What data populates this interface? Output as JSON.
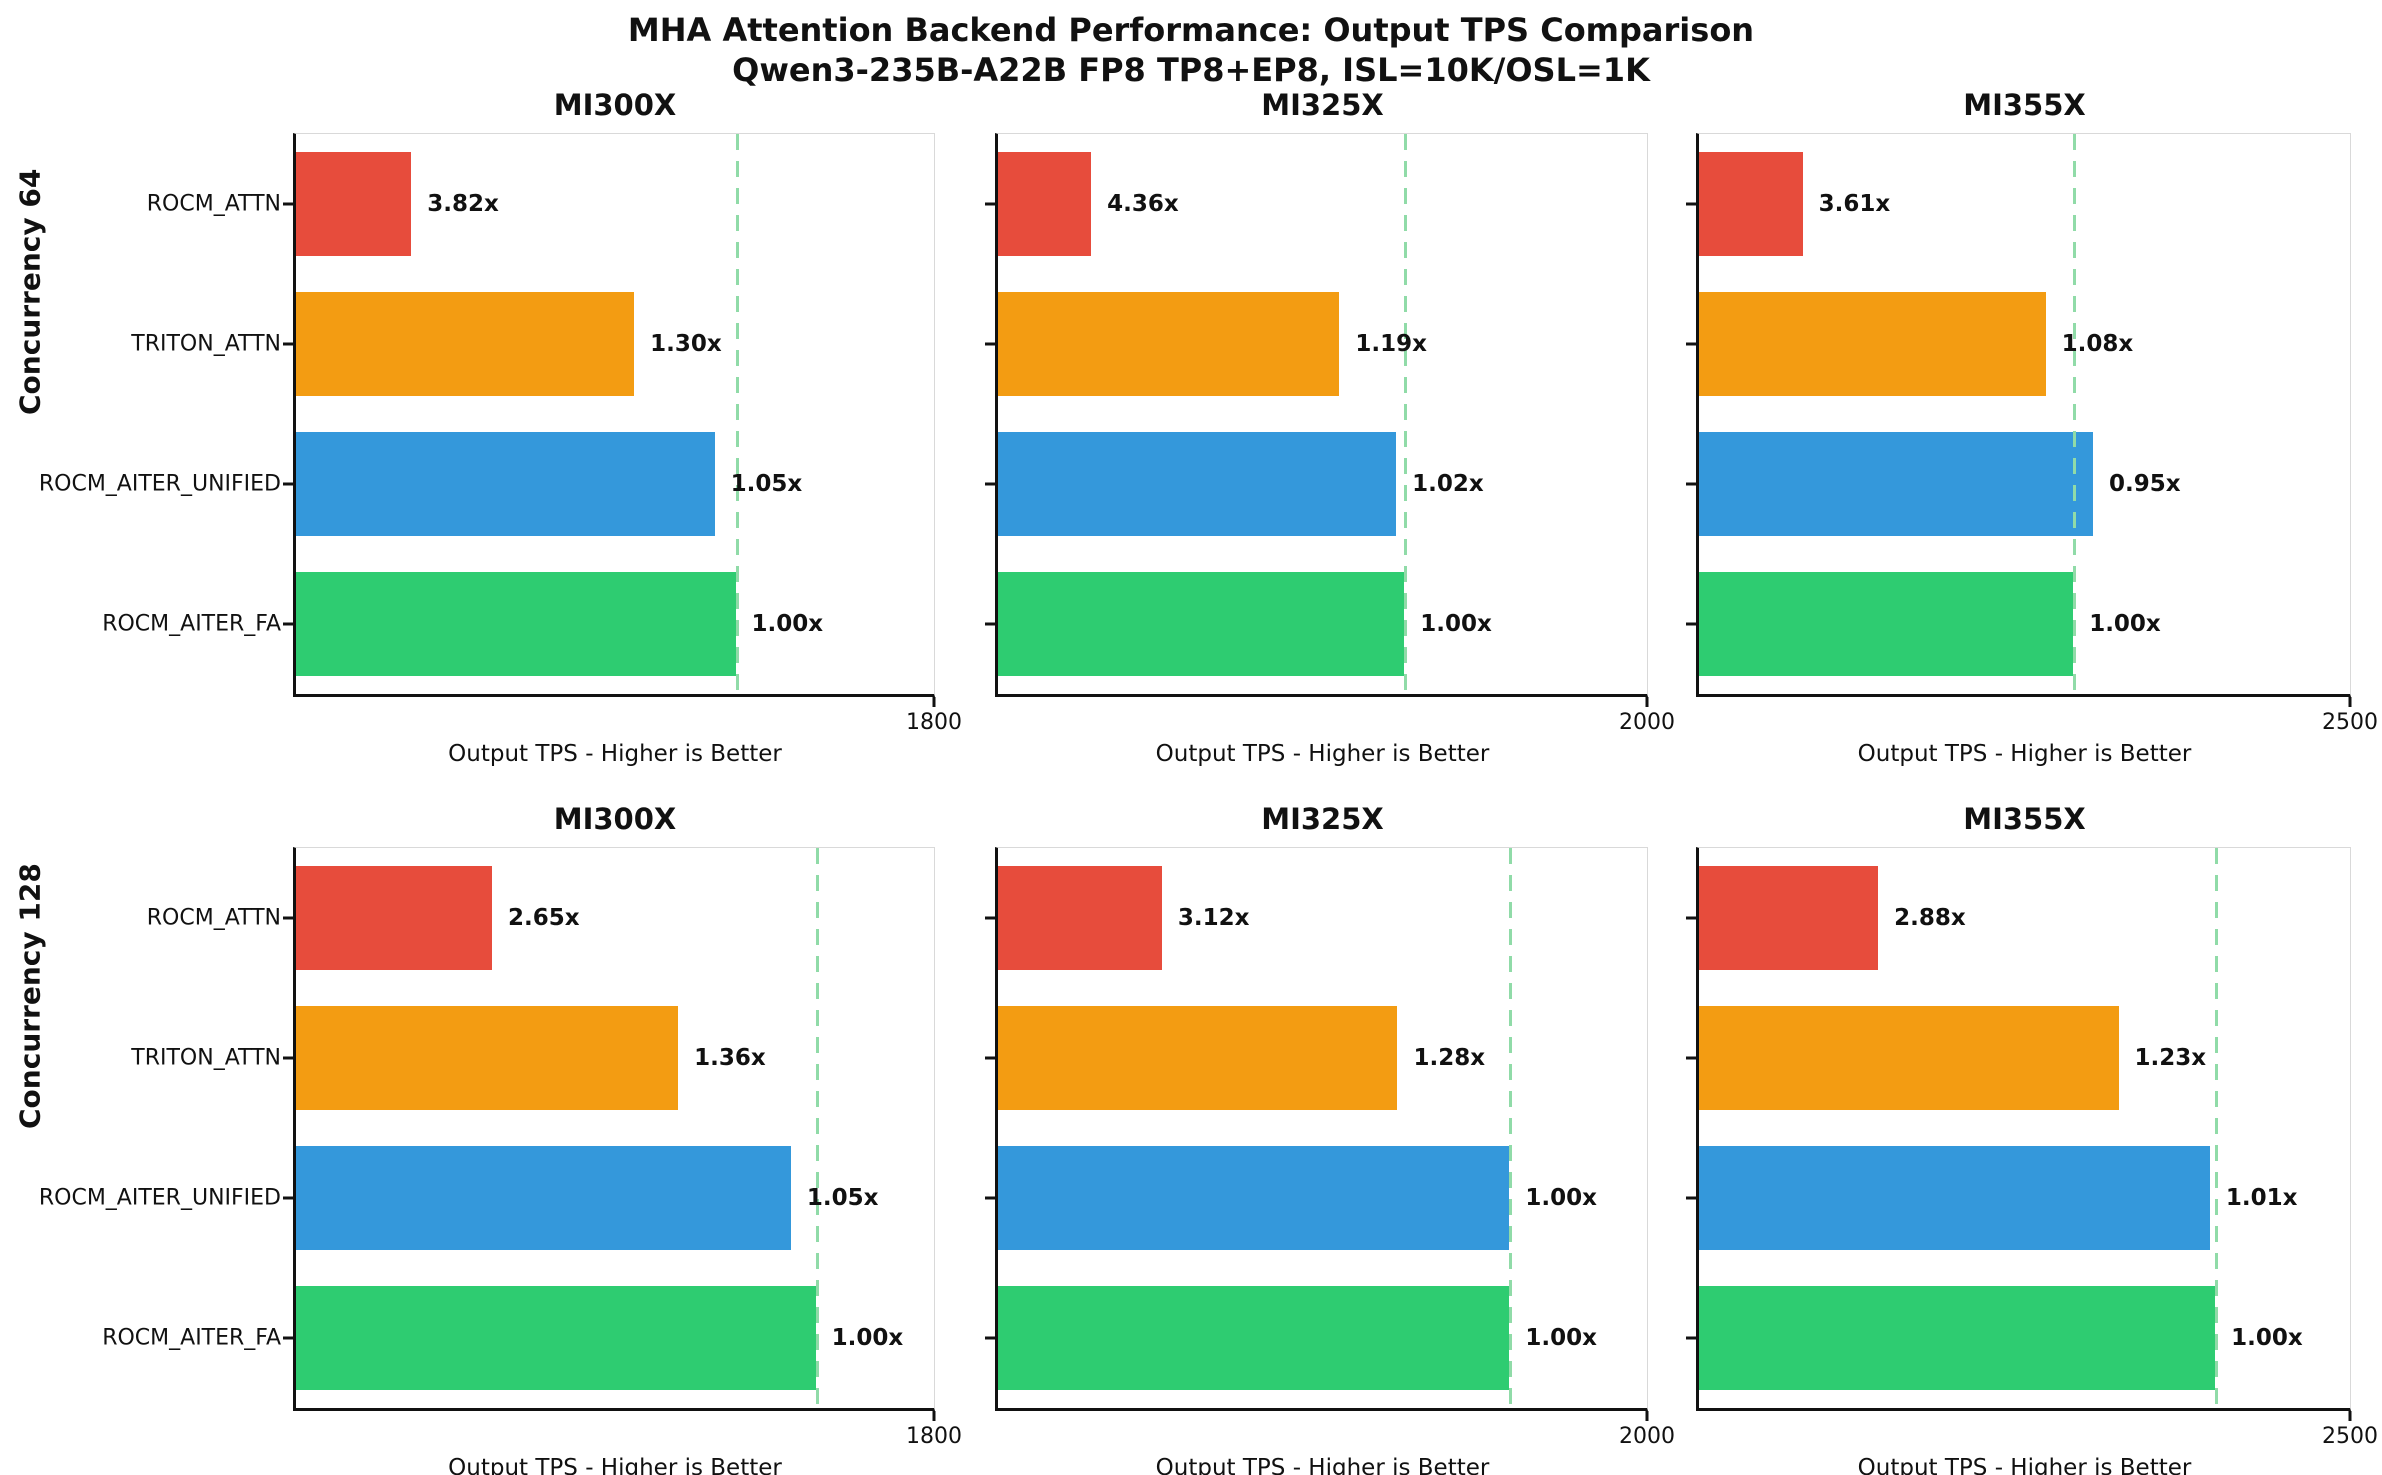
{
  "title": {
    "line1": "MHA Attention Backend Performance: Output TPS Comparison",
    "line2": "Qwen3-235B-A22B FP8 TP8+EP8, ISL=10K/OSL=1K"
  },
  "colors": {
    "ROCM_ATTN": "#e74c3c",
    "TRITON_ATTN": "#f39c12",
    "ROCM_AITER_UNIFIED": "#3498db",
    "ROCM_AITER_FA": "#2ecc71",
    "baseline_dash": "#90dba8",
    "spine_dark": "#111111",
    "spine_light": "#d9d9d9"
  },
  "chart_data": [
    {
      "type": "bar",
      "orientation": "horizontal",
      "row_label": "Concurrency 64",
      "title": "MI300X",
      "xlabel": "Output TPS - Higher is Better",
      "xlim": [
        0,
        1800
      ],
      "x_max_tick_label": "1800",
      "categories": [
        "ROCM_ATTN",
        "TRITON_ATTN",
        "ROCM_AITER_UNIFIED",
        "ROCM_AITER_FA"
      ],
      "values_tps_est": [
        325,
        954,
        1181,
        1240
      ],
      "bar_labels": [
        "3.82x",
        "1.30x",
        "1.05x",
        "1.00x"
      ],
      "baseline_tps_est": 1240,
      "show_y_tick_labels": true
    },
    {
      "type": "bar",
      "orientation": "horizontal",
      "row_label": "Concurrency 64",
      "title": "MI325X",
      "xlabel": "Output TPS - Higher is Better",
      "xlim": [
        0,
        2000
      ],
      "x_max_tick_label": "2000",
      "categories": [
        "ROCM_ATTN",
        "TRITON_ATTN",
        "ROCM_AITER_UNIFIED",
        "ROCM_AITER_FA"
      ],
      "values_tps_est": [
        287,
        1052,
        1227,
        1252
      ],
      "bar_labels": [
        "4.36x",
        "1.19x",
        "1.02x",
        "1.00x"
      ],
      "baseline_tps_est": 1252,
      "show_y_tick_labels": false
    },
    {
      "type": "bar",
      "orientation": "horizontal",
      "row_label": "Concurrency 64",
      "title": "MI355X",
      "xlabel": "Output TPS - Higher is Better",
      "xlim": [
        0,
        2500
      ],
      "x_max_tick_label": "2500",
      "categories": [
        "ROCM_ATTN",
        "TRITON_ATTN",
        "ROCM_AITER_UNIFIED",
        "ROCM_AITER_FA"
      ],
      "values_tps_est": [
        398,
        1331,
        1513,
        1437
      ],
      "bar_labels": [
        "3.61x",
        "1.08x",
        "0.95x",
        "1.00x"
      ],
      "baseline_tps_est": 1437,
      "show_y_tick_labels": false
    },
    {
      "type": "bar",
      "orientation": "horizontal",
      "row_label": "Concurrency 128",
      "title": "MI300X",
      "xlabel": "Output TPS - Higher is Better",
      "xlim": [
        0,
        1800
      ],
      "x_max_tick_label": "1800",
      "categories": [
        "ROCM_ATTN",
        "TRITON_ATTN",
        "ROCM_AITER_UNIFIED",
        "ROCM_AITER_FA"
      ],
      "values_tps_est": [
        553,
        1078,
        1396,
        1466
      ],
      "bar_labels": [
        "2.65x",
        "1.36x",
        "1.05x",
        "1.00x"
      ],
      "baseline_tps_est": 1466,
      "show_y_tick_labels": true
    },
    {
      "type": "bar",
      "orientation": "horizontal",
      "row_label": "Concurrency 128",
      "title": "MI325X",
      "xlabel": "Output TPS - Higher is Better",
      "xlim": [
        0,
        2000
      ],
      "x_max_tick_label": "2000",
      "categories": [
        "ROCM_ATTN",
        "TRITON_ATTN",
        "ROCM_AITER_UNIFIED",
        "ROCM_AITER_FA"
      ],
      "values_tps_est": [
        505,
        1231,
        1576,
        1576
      ],
      "bar_labels": [
        "3.12x",
        "1.28x",
        "1.00x",
        "1.00x"
      ],
      "baseline_tps_est": 1576,
      "show_y_tick_labels": false
    },
    {
      "type": "bar",
      "orientation": "horizontal",
      "row_label": "Concurrency 128",
      "title": "MI355X",
      "xlabel": "Output TPS - Higher is Better",
      "xlim": [
        0,
        2500
      ],
      "x_max_tick_label": "2500",
      "categories": [
        "ROCM_ATTN",
        "TRITON_ATTN",
        "ROCM_AITER_UNIFIED",
        "ROCM_AITER_FA"
      ],
      "values_tps_est": [
        688,
        1611,
        1962,
        1982
      ],
      "bar_labels": [
        "2.88x",
        "1.23x",
        "1.01x",
        "1.00x"
      ],
      "baseline_tps_est": 1982,
      "show_y_tick_labels": false
    }
  ]
}
